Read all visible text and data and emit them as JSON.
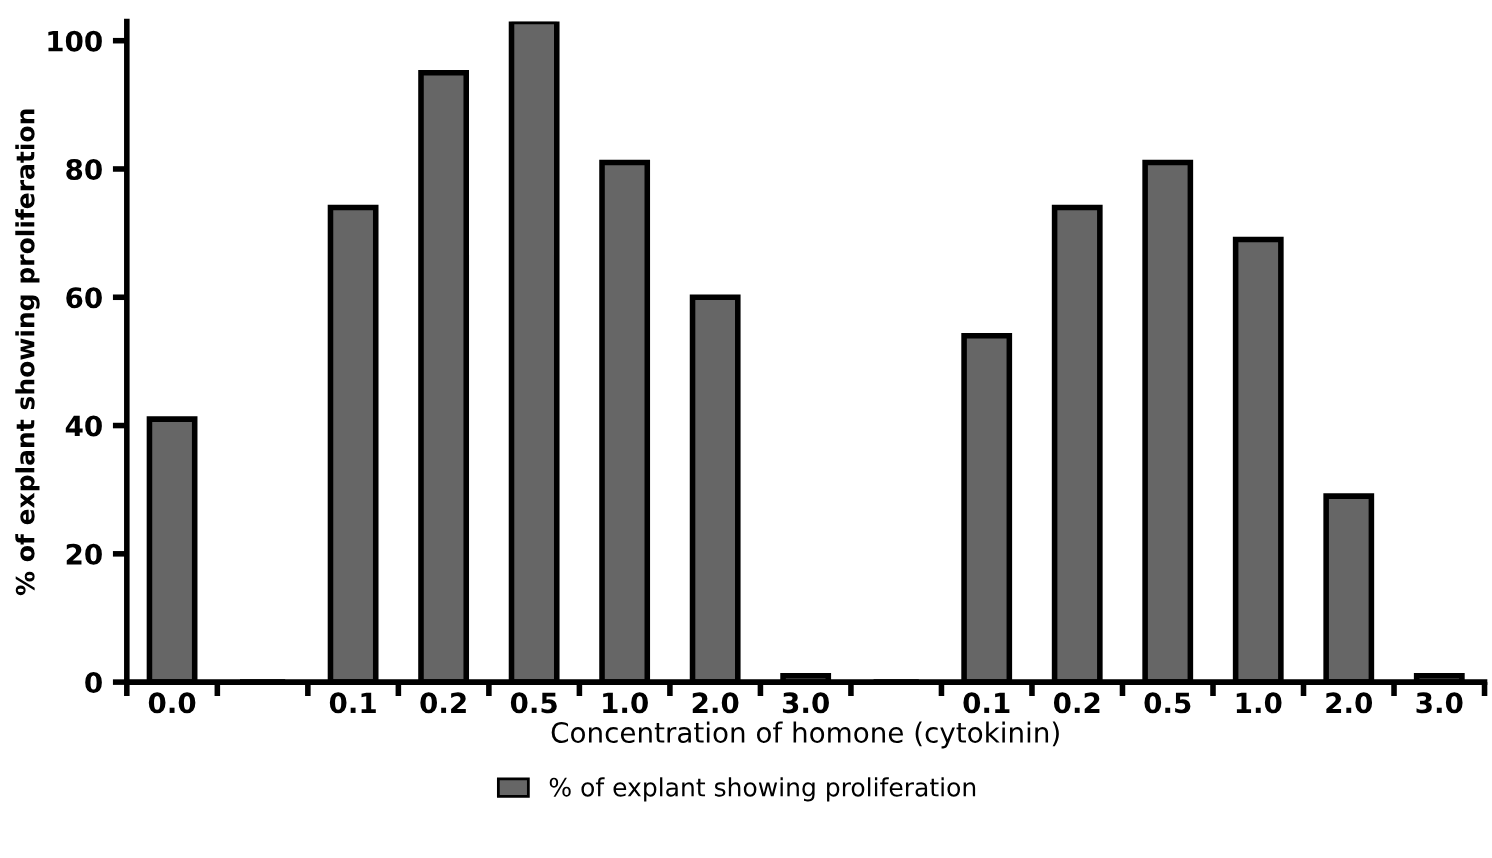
{
  "chart_data": {
    "type": "bar",
    "xlabel": "Concentration of homone (cytokinin)",
    "ylabel": "% of explant showing proliferation",
    "categories": [
      "0.0",
      null,
      "0.1",
      "0.2",
      "0.5",
      "1.0",
      "2.0",
      "3.0",
      null,
      "0.1",
      "0.2",
      "0.5",
      "1.0",
      "2.0",
      "3.0"
    ],
    "series": [
      {
        "name": "% of explant showing proliferation",
        "color": "#666666",
        "values": [
          41,
          0,
          74,
          95,
          103,
          81,
          60,
          1,
          0,
          54,
          74,
          81,
          69,
          29,
          1
        ]
      }
    ],
    "ylim": [
      0,
      103
    ],
    "yticks": [
      0,
      20,
      40,
      60,
      80,
      100
    ],
    "grid": false,
    "legend": "bottom"
  }
}
